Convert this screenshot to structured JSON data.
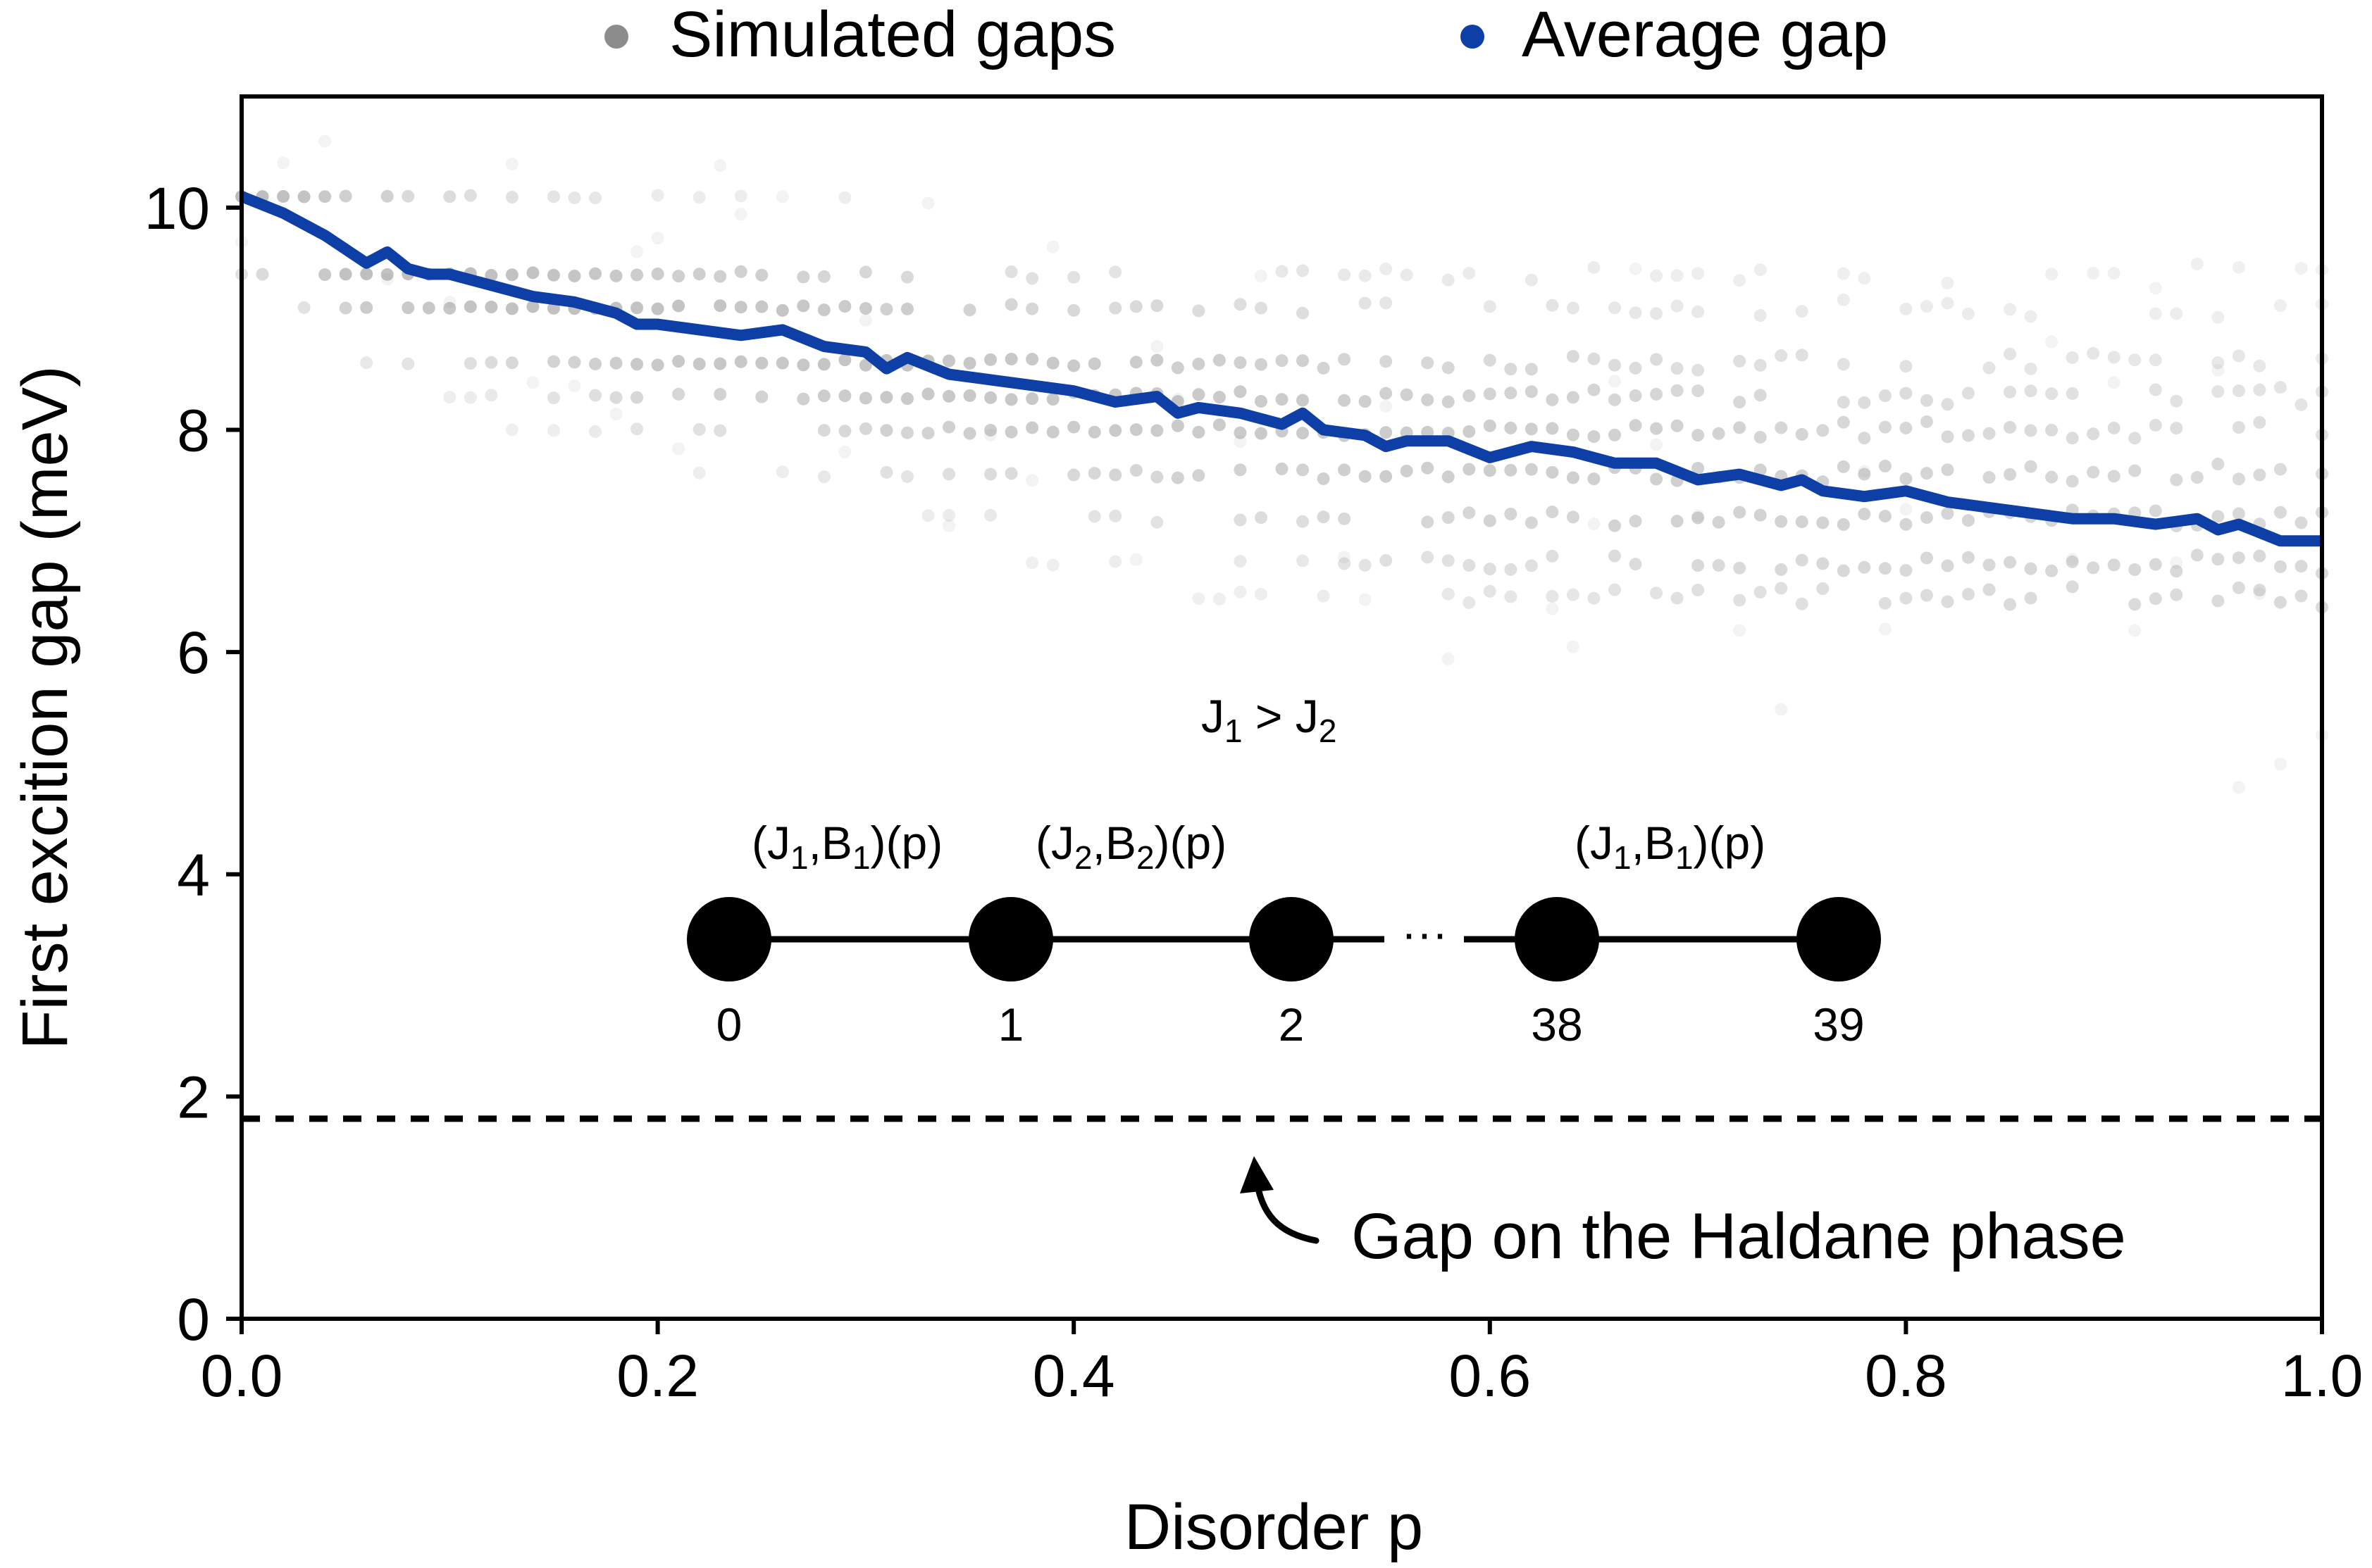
{
  "chart_data": {
    "type": "scatter",
    "xlabel": "Disorder p",
    "ylabel": "First excition gap (meV)",
    "xlim": [
      0.0,
      1.0
    ],
    "ylim": [
      0,
      11
    ],
    "x_ticks": [
      "0.0",
      "0.2",
      "0.4",
      "0.6",
      "0.8",
      "1.0"
    ],
    "y_ticks": [
      "0",
      "2",
      "4",
      "6",
      "8",
      "10"
    ],
    "grid": false,
    "legend": {
      "placement": "top-center-outside",
      "entries": [
        {
          "label": "Simulated gaps",
          "color": "#8c8c8c"
        },
        {
          "label": "Average gap",
          "color": "#0d3fa6"
        }
      ]
    },
    "reference_line": {
      "y": 1.8,
      "style": "dashed",
      "color": "#000000"
    },
    "annotation": {
      "text": "Gap on the Haldane phase",
      "x": 0.49,
      "y": 1.8
    },
    "scatter_levels": [
      10.1,
      9.4,
      9.1,
      8.6,
      8.3,
      8.0,
      7.6,
      7.2,
      6.8,
      6.5
    ],
    "series": [
      {
        "name": "Average gap",
        "color": "#0d3fa6",
        "x": [
          0.0,
          0.02,
          0.04,
          0.06,
          0.07,
          0.08,
          0.09,
          0.1,
          0.12,
          0.14,
          0.16,
          0.18,
          0.19,
          0.2,
          0.22,
          0.24,
          0.26,
          0.28,
          0.3,
          0.31,
          0.32,
          0.34,
          0.36,
          0.38,
          0.4,
          0.42,
          0.44,
          0.45,
          0.46,
          0.48,
          0.5,
          0.51,
          0.52,
          0.54,
          0.55,
          0.56,
          0.58,
          0.6,
          0.62,
          0.64,
          0.66,
          0.68,
          0.7,
          0.72,
          0.74,
          0.75,
          0.76,
          0.78,
          0.8,
          0.82,
          0.84,
          0.86,
          0.88,
          0.9,
          0.92,
          0.94,
          0.95,
          0.96,
          0.98,
          1.0
        ],
        "values": [
          10.1,
          9.95,
          9.75,
          9.5,
          9.6,
          9.45,
          9.4,
          9.4,
          9.3,
          9.2,
          9.15,
          9.05,
          8.95,
          8.95,
          8.9,
          8.85,
          8.9,
          8.75,
          8.7,
          8.55,
          8.65,
          8.5,
          8.45,
          8.4,
          8.35,
          8.25,
          8.3,
          8.15,
          8.2,
          8.15,
          8.05,
          8.15,
          8.0,
          7.95,
          7.85,
          7.9,
          7.9,
          7.75,
          7.85,
          7.8,
          7.7,
          7.7,
          7.55,
          7.6,
          7.5,
          7.55,
          7.45,
          7.4,
          7.45,
          7.35,
          7.3,
          7.25,
          7.2,
          7.2,
          7.15,
          7.2,
          7.1,
          7.15,
          7.0,
          7.0
        ]
      }
    ]
  },
  "inset": {
    "condition": "J",
    "condition_sub1": "1",
    "condition_mid": " > J",
    "condition_sub2": "2",
    "bond_labels": [
      {
        "a": "(J",
        "a_sub": "1",
        "b": ",B",
        "b_sub": "1",
        "c": ")(p)"
      },
      {
        "a": "(J",
        "a_sub": "2",
        "b": ",B",
        "b_sub": "2",
        "c": ")(p)"
      },
      {
        "a": "(J",
        "a_sub": "1",
        "b": ",B",
        "b_sub": "1",
        "c": ")(p)"
      }
    ],
    "ellipsis": "···",
    "site_labels": [
      "0",
      "1",
      "2",
      "38",
      "39"
    ]
  }
}
